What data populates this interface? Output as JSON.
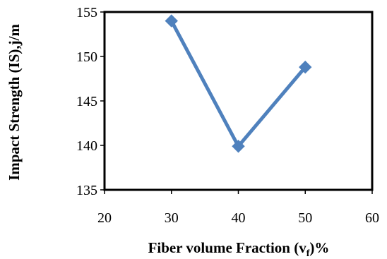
{
  "chart_data": {
    "type": "line",
    "title": "",
    "xlabel": "Fiber volume Fraction (v",
    "xlabel_subscript": "f",
    "xlabel_suffix": ")%",
    "ylabel": "Impact Strength (IS),j/m",
    "xlim": [
      20,
      60
    ],
    "ylim": [
      135,
      155
    ],
    "xticks": [
      "20",
      "30",
      "40",
      "50",
      "60"
    ],
    "yticks": [
      "135",
      "140",
      "145",
      "150",
      "155"
    ],
    "grid": false,
    "legend": "none",
    "series": [
      {
        "x": [
          30,
          40,
          50
        ],
        "y": [
          154,
          139.9,
          148.8
        ],
        "color": "#4f81bd",
        "marker": "diamond"
      }
    ]
  }
}
